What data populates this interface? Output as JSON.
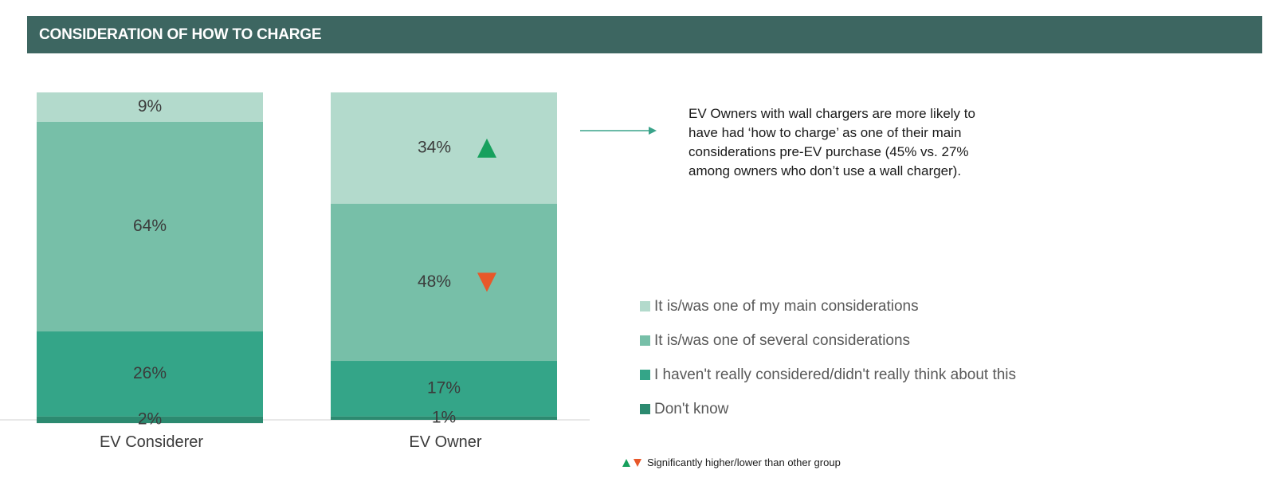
{
  "header": {
    "title": "CONSIDERATION OF HOW TO CHARGE"
  },
  "colors": {
    "header_bg": "#3d6661",
    "main_considerations": "#b3dacc",
    "several_considerations": "#77bfa8",
    "not_considered": "#34a588",
    "dont_know": "#2c8a70",
    "sig_higher": "#17a05d",
    "sig_lower": "#e8582a",
    "arrow": "#3aa38a"
  },
  "chart_data": {
    "type": "bar",
    "stacked": true,
    "categories": [
      "EV Considerer",
      "EV Owner"
    ],
    "series": [
      {
        "name": "It is/was one of my main considerations",
        "values": [
          9,
          34
        ],
        "color": "#b3dacc"
      },
      {
        "name": "It is/was one of several considerations",
        "values": [
          64,
          48
        ],
        "color": "#77bfa8"
      },
      {
        "name": "I haven't really considered/didn't really think about this",
        "values": [
          26,
          17
        ],
        "color": "#34a588"
      },
      {
        "name": "Don't know",
        "values": [
          2,
          1
        ],
        "color": "#2c8a70"
      }
    ],
    "data_labels": [
      [
        "9%",
        "64%",
        "26%",
        "2%"
      ],
      [
        "34%",
        "48%",
        "17%",
        "1%"
      ]
    ],
    "significance": [
      {
        "category": "EV Owner",
        "series": "It is/was one of my main considerations",
        "direction": "higher"
      },
      {
        "category": "EV Owner",
        "series": "It is/was one of several considerations",
        "direction": "lower"
      }
    ],
    "ylim": [
      0,
      100
    ],
    "grid": false,
    "legend_position": "right"
  },
  "annotation": {
    "text": "EV Owners with wall chargers are more likely to have had ‘how to charge’ as one of their main considerations pre-EV purchase (45% vs. 27% among owners who don’t use a wall charger)."
  },
  "legend": {
    "items": [
      {
        "label": "It is/was one of my main considerations"
      },
      {
        "label": "It is/was one of several considerations"
      },
      {
        "label": "I haven't really considered/didn't really think about this"
      },
      {
        "label": "Don't know"
      }
    ]
  },
  "footnote": {
    "text": "Significantly higher/lower than other group"
  }
}
